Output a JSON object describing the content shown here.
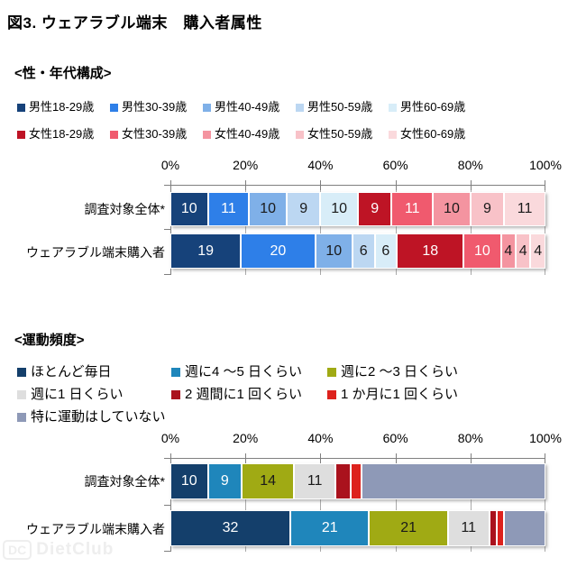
{
  "page": {
    "title": "図3. ウェアラブル端末　購入者属性",
    "watermark": {
      "badge": "DC",
      "name": "DietClub"
    }
  },
  "chart_data": [
    {
      "type": "bar",
      "orientation": "horizontal",
      "stacked": true,
      "section_heading": "<性・年代構成>",
      "value_unit": "%",
      "xlim": [
        0,
        100
      ],
      "axis_ticks": [
        "0%",
        "20%",
        "40%",
        "60%",
        "80%",
        "100%"
      ],
      "grid": true,
      "legend_position": "top",
      "legend_columns": 5,
      "series": [
        {
          "name": "男性18-29歳",
          "color": "#16427A",
          "label_color": "#FFFFFF"
        },
        {
          "name": "男性30-39歳",
          "color": "#2E7FE8",
          "label_color": "#FFFFFF"
        },
        {
          "name": "男性40-49歳",
          "color": "#7FB0E8",
          "label_color": "#1A1A1A"
        },
        {
          "name": "男性50-59歳",
          "color": "#BCD7F2",
          "label_color": "#1A1A1A"
        },
        {
          "name": "男性60-69歳",
          "color": "#D8EDF8",
          "label_color": "#1A1A1A"
        },
        {
          "name": "女性18-29歳",
          "color": "#BE1425",
          "label_color": "#FFFFFF"
        },
        {
          "name": "女性30-39歳",
          "color": "#F05A6E",
          "label_color": "#FFFFFF"
        },
        {
          "name": "女性40-49歳",
          "color": "#F494A0",
          "label_color": "#1A1A1A"
        },
        {
          "name": "女性50-59歳",
          "color": "#F8C2C8",
          "label_color": "#1A1A1A"
        },
        {
          "name": "女性60-69歳",
          "color": "#FAD9DC",
          "label_color": "#1A1A1A"
        }
      ],
      "rows": [
        {
          "category": "調査対象全体*",
          "values": [
            10,
            11,
            10,
            9,
            10,
            9,
            11,
            10,
            9,
            11
          ],
          "display": [
            "10",
            "11",
            "10",
            "9",
            "10",
            "9",
            "11",
            "10",
            "9",
            "11"
          ]
        },
        {
          "category": "ウェアラブル端末購入者",
          "values": [
            19,
            20,
            10,
            6,
            6,
            18,
            10,
            4,
            4,
            4
          ],
          "display": [
            "19",
            "20",
            "10",
            "6",
            "6",
            "18",
            "10",
            "4",
            "4",
            "4"
          ]
        }
      ]
    },
    {
      "type": "bar",
      "orientation": "horizontal",
      "stacked": true,
      "section_heading": "<運動頻度>",
      "value_unit": "%",
      "xlim": [
        0,
        100
      ],
      "axis_ticks": [
        "0%",
        "20%",
        "40%",
        "60%",
        "80%",
        "100%"
      ],
      "grid": true,
      "legend_position": "top",
      "legend_columns": 3,
      "series": [
        {
          "name": "ほとんど毎日",
          "color": "#143F6B",
          "label_color": "#FFFFFF"
        },
        {
          "name": "週に4 ～5 日くらい",
          "color": "#1F86BB",
          "label_color": "#FFFFFF"
        },
        {
          "name": "週に2 ～3 日くらい",
          "color": "#A0AA14",
          "label_color": "#1A1A1A"
        },
        {
          "name": "週に1 日くらい",
          "color": "#DEDEDE",
          "label_color": "#1A1A1A"
        },
        {
          "name": "2 週間に1 回くらい",
          "color": "#AA121D",
          "label_color": "#FFFFFF"
        },
        {
          "name": "1 か月に1 回くらい",
          "color": "#DD221D",
          "label_color": "#FFFFFF"
        },
        {
          "name": "特に運動はしていない",
          "color": "#8E99B7",
          "label_color": "#1A1A1A"
        }
      ],
      "rows": [
        {
          "category": "調査対象全体*",
          "values": [
            10,
            9,
            14,
            11,
            4,
            3,
            49
          ],
          "display": [
            "10",
            "9",
            "14",
            "11",
            "",
            "",
            ""
          ]
        },
        {
          "category": "ウェアラブル端末購入者",
          "values": [
            32,
            21,
            21,
            11,
            2,
            2,
            11
          ],
          "display": [
            "32",
            "21",
            "21",
            "11",
            "",
            "",
            ""
          ]
        }
      ]
    }
  ]
}
